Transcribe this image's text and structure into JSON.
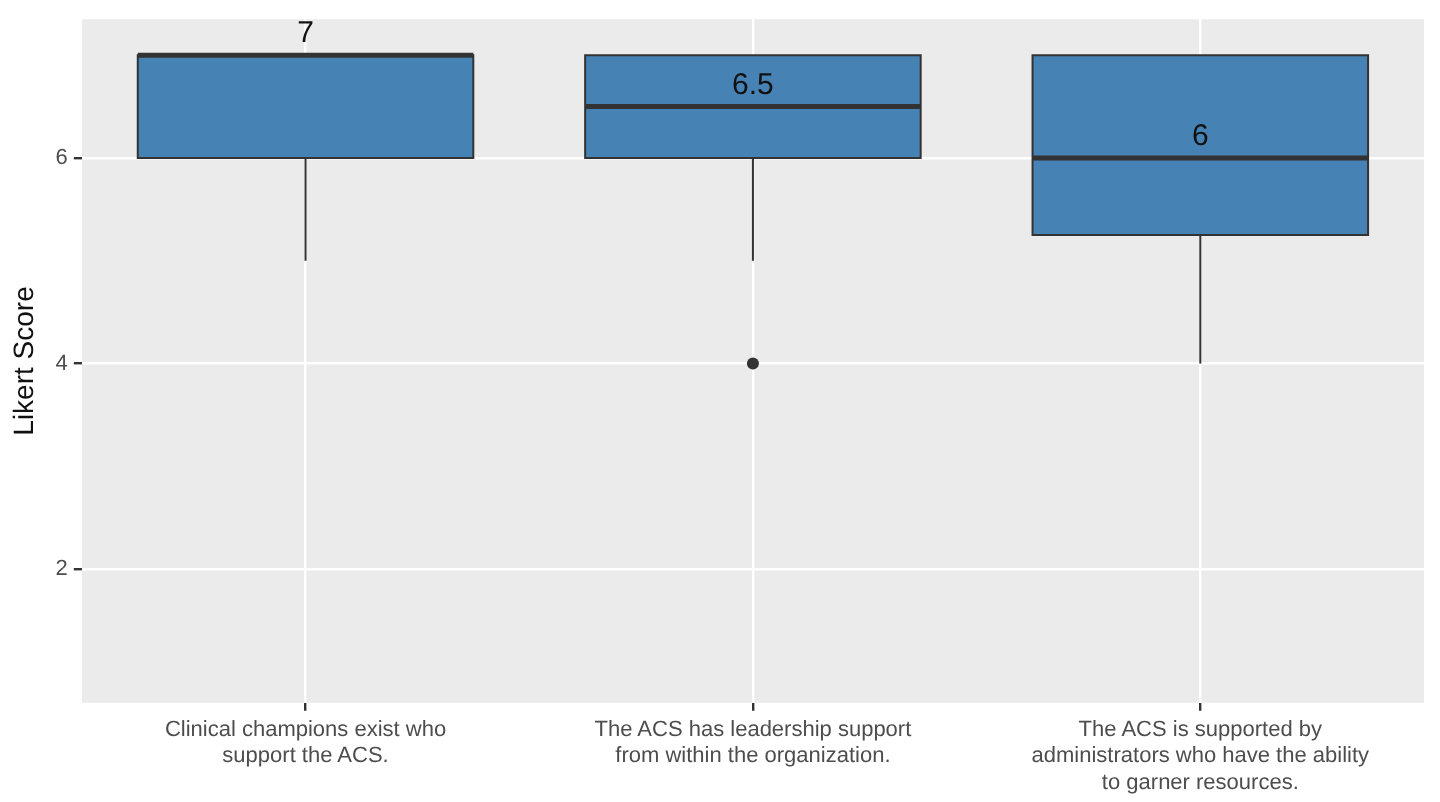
{
  "chart_data": {
    "type": "box",
    "ylabel": "Likert Score",
    "categories": [
      "Clinical champions exist who support the ACS.",
      "The ACS has leadership support from within the organization.",
      "The ACS is supported by administrators who have the ability to garner resources."
    ],
    "boxes": [
      {
        "low": 5,
        "q1": 6,
        "median": 7,
        "q3": 7,
        "high": 7
      },
      {
        "low": 5,
        "q1": 6,
        "median": 6.5,
        "q3": 7,
        "high": 7,
        "outliers": [
          4
        ]
      },
      {
        "low": 4,
        "q1": 5.25,
        "median": 6,
        "q3": 7,
        "high": 7
      }
    ],
    "value_labels": [
      "7",
      "6.5",
      "6"
    ],
    "color": "#4682b4",
    "ylim": [
      0.7,
      7.35
    ],
    "yticks": [
      2,
      4,
      6
    ],
    "grid": true,
    "legend": false
  }
}
